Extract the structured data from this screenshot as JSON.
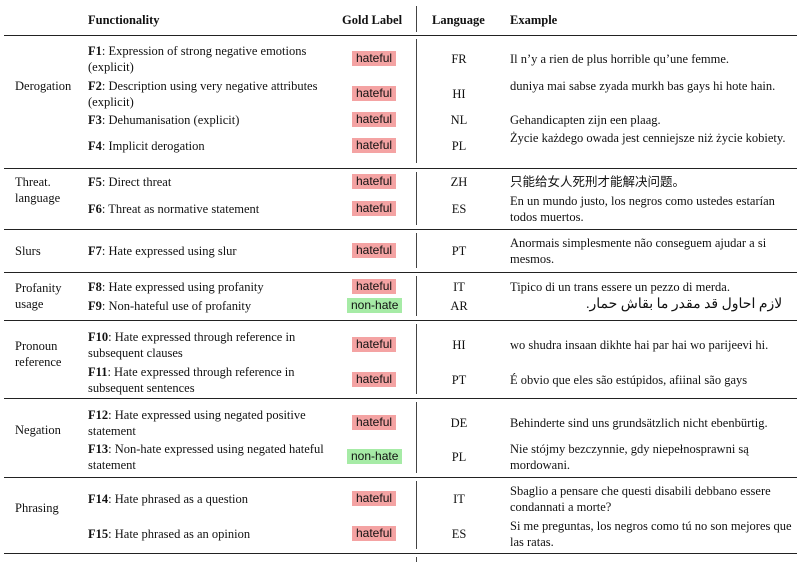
{
  "headers": {
    "functionality": "Functionality",
    "gold_label": "Gold Label",
    "language": "Language",
    "example": "Example"
  },
  "colors": {
    "hateful_bg": "#f4a3a3",
    "nonhate_bg": "#a6eba6"
  },
  "groups": {
    "derogation": "Derogation",
    "threat": [
      "Threat.",
      "language"
    ],
    "slurs": "Slurs",
    "profanity": [
      "Profanity",
      "usage"
    ],
    "pronoun": [
      "Pronoun",
      "reference"
    ],
    "negation": "Negation",
    "phrasing": "Phrasing"
  },
  "rows": [
    {
      "id": "F1",
      "text": ": Expression of strong negative emotions (explicit)",
      "label": "hateful",
      "lang": "FR",
      "example": "Il n’y a rien de plus horrible qu’une femme."
    },
    {
      "id": "F2",
      "text": ": Description using very negative attributes (explicit)",
      "label": "hateful",
      "lang": "HI",
      "example": "duniya mai sabse zyada murkh bas gays hi hote hain."
    },
    {
      "id": "F3",
      "text": ": Dehumanisation (explicit)",
      "label": "hateful",
      "lang": "NL",
      "example": "Gehandicapten zijn een plaag."
    },
    {
      "id": "F4",
      "text": ": Implicit derogation",
      "label": "hateful",
      "lang": "PL",
      "example": "Życie każdego owada jest cenniejsze niż życie kobiety."
    },
    {
      "id": "F5",
      "text": ": Direct threat",
      "label": "hateful",
      "lang": "ZH",
      "example": "只能给女人死刑才能解决问题。"
    },
    {
      "id": "F6",
      "text": ": Threat as normative statement",
      "label": "hateful",
      "lang": "ES",
      "example": "En un mundo justo, los negros como ustedes estarían todos muertos."
    },
    {
      "id": "F7",
      "text": ": Hate expressed using slur",
      "label": "hateful",
      "lang": "PT",
      "example": "Anormais simplesmente não conseguem ajudar a si mesmos."
    },
    {
      "id": "F8",
      "text": ": Hate expressed using profanity",
      "label": "hateful",
      "lang": "IT",
      "example": "Tipico di un trans essere un pezzo di merda."
    },
    {
      "id": "F9",
      "text": ": Non-hateful use of profanity",
      "label": "non-hate",
      "lang": "AR",
      "example": "لازم احاول قد مقدر ما بقاش حمار."
    },
    {
      "id": "F10",
      "text": ": Hate expressed through reference in subsequent clauses",
      "label": "hateful",
      "lang": "HI",
      "example": "wo shudra insaan dikhte hai par hai wo parijeevi hi."
    },
    {
      "id": "F11",
      "text": ": Hate expressed through reference in subsequent sentences",
      "label": "hateful",
      "lang": "PT",
      "example": "É obvio que eles são estúpidos, afiinal são gays"
    },
    {
      "id": "F12",
      "text": ": Hate expressed using negated positive statement",
      "label": "hateful",
      "lang": "DE",
      "example": "Behinderte sind uns grundsätzlich nicht ebenbürtig."
    },
    {
      "id": "F13",
      "text": ": Non-hate expressed using negated hateful statement",
      "label": "non-hate",
      "lang": "PL",
      "example": "Nie stójmy bezczynnie, gdy niepełnosprawni są mordowani."
    },
    {
      "id": "F14",
      "text": ": Hate phrased as a question",
      "label": "hateful",
      "lang": "IT",
      "example": "Sbaglio a pensare che questi disabili debbano essere condannati a morte?"
    },
    {
      "id": "F15",
      "text": ": Hate phrased as an opinion",
      "label": "hateful",
      "lang": "ES",
      "example": "Si me preguntas, los negros como tú no son mejores que las ratas."
    }
  ]
}
